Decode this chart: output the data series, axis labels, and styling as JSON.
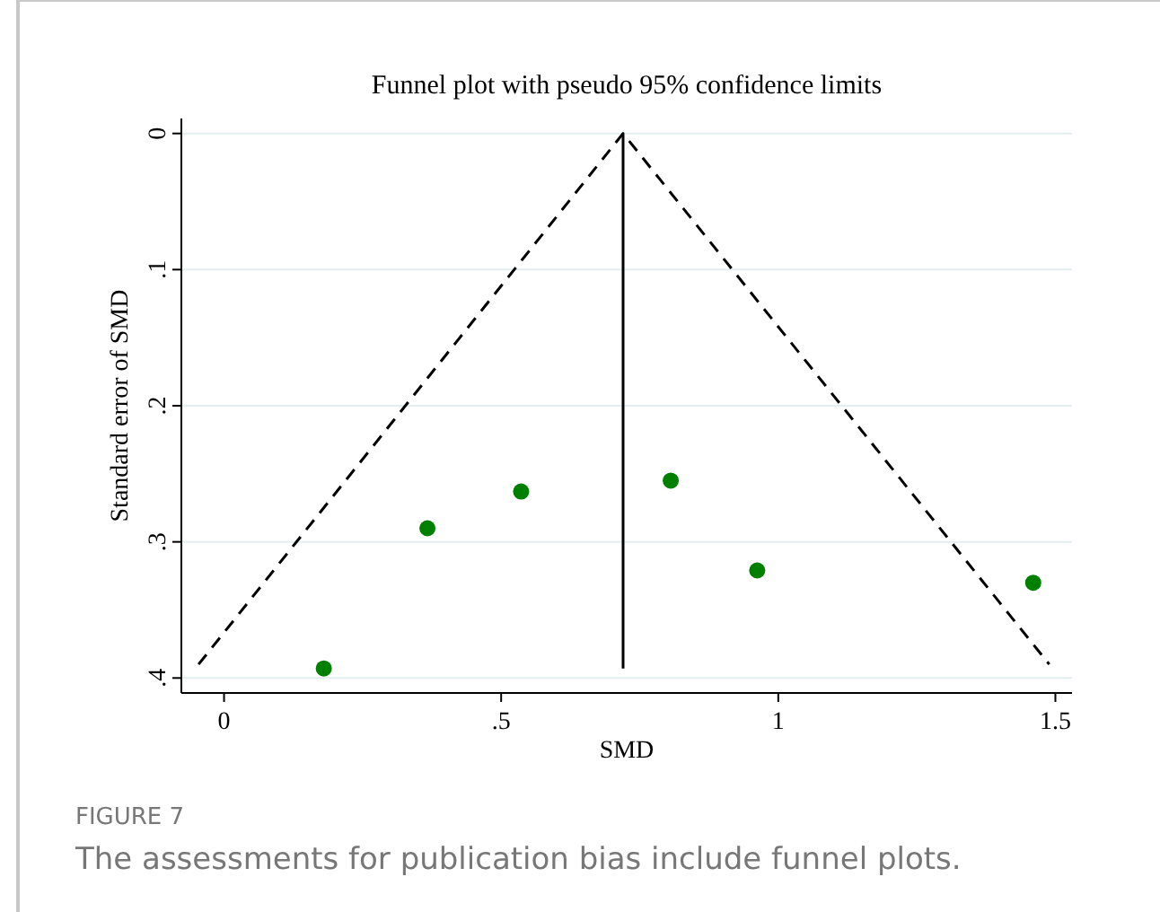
{
  "chart_data": {
    "type": "scatter",
    "title": "Funnel plot with pseudo 95% confidence limits",
    "xlabel": "SMD",
    "ylabel": "Standard error of SMD",
    "x": [
      0.18,
      0.367,
      0.536,
      0.806,
      0.962,
      1.46
    ],
    "series": [
      {
        "color": "#008000",
        "values": [
          0.393,
          0.29,
          0.263,
          0.255,
          0.321,
          0.33
        ]
      },
      {
        "type": "line",
        "marker": "none",
        "color": "#000000",
        "line_style": "dashed",
        "x": [
          -0.046,
          0.72,
          1.489
        ],
        "values": [
          0.39,
          0,
          0.39
        ]
      },
      {
        "type": "line",
        "marker": "none",
        "color": "#000000",
        "line_style": "solid",
        "x": [
          0.72,
          0.72
        ],
        "values": [
          0,
          0.393
        ]
      }
    ],
    "xlim": [
      -0.077,
      1.53
    ],
    "ylim": [
      0.411,
      -0.011
    ],
    "xticks": [
      0,
      {
        "value": 0.5,
        "label": ".5"
      },
      1,
      1.5
    ],
    "yticks": [
      0,
      {
        "value": 0.1,
        "label": ".1"
      },
      {
        "value": 0.2,
        "label": ".2"
      },
      {
        "value": 0.3,
        "label": ".3"
      },
      {
        "value": 0.4,
        "label": ".4"
      }
    ],
    "grid": "y",
    "marker": "circle",
    "annotations": [
      "FIGURE 7",
      "The assessments for publication bias include funnel plots."
    ]
  }
}
